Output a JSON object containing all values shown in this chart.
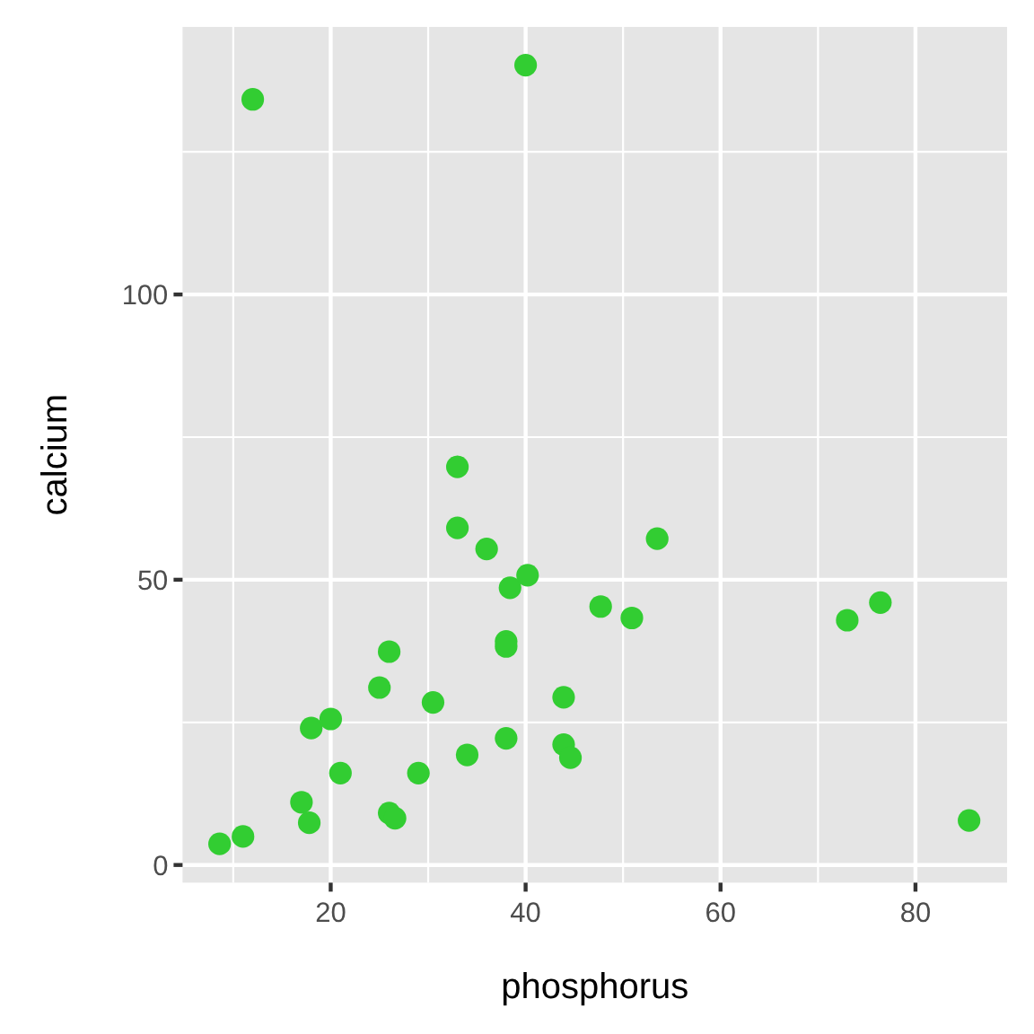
{
  "chart_data": {
    "type": "scatter",
    "xlabel": "phosphorus",
    "ylabel": "calcium",
    "x": [
      12.0,
      40.0,
      8.6,
      11.0,
      17.0,
      17.8,
      18.0,
      20.0,
      21.0,
      25.0,
      26.0,
      26.0,
      26.6,
      29.0,
      30.5,
      33.0,
      33.0,
      34.0,
      36.0,
      38.0,
      38.0,
      38.0,
      38.4,
      40.2,
      43.9,
      43.9,
      44.6,
      47.7,
      50.9,
      53.5,
      73.0,
      76.4,
      85.5
    ],
    "values": [
      134.2,
      140.2,
      3.7,
      5.0,
      11.0,
      7.4,
      24.0,
      25.6,
      16.1,
      31.1,
      37.4,
      9.1,
      8.2,
      16.1,
      28.5,
      69.8,
      59.1,
      19.3,
      55.4,
      39.2,
      38.3,
      22.2,
      48.6,
      50.8,
      29.4,
      21.1,
      18.8,
      45.3,
      43.3,
      57.2,
      42.9,
      46.0,
      7.8
    ],
    "color": "#32cd32",
    "marker": "circle",
    "xlim": [
      4.8,
      89.4
    ],
    "ylim": [
      -3.1,
      146.9
    ],
    "xticks": [
      20,
      40,
      60,
      80
    ],
    "yticks": [
      0,
      50,
      100
    ],
    "grid": true
  }
}
